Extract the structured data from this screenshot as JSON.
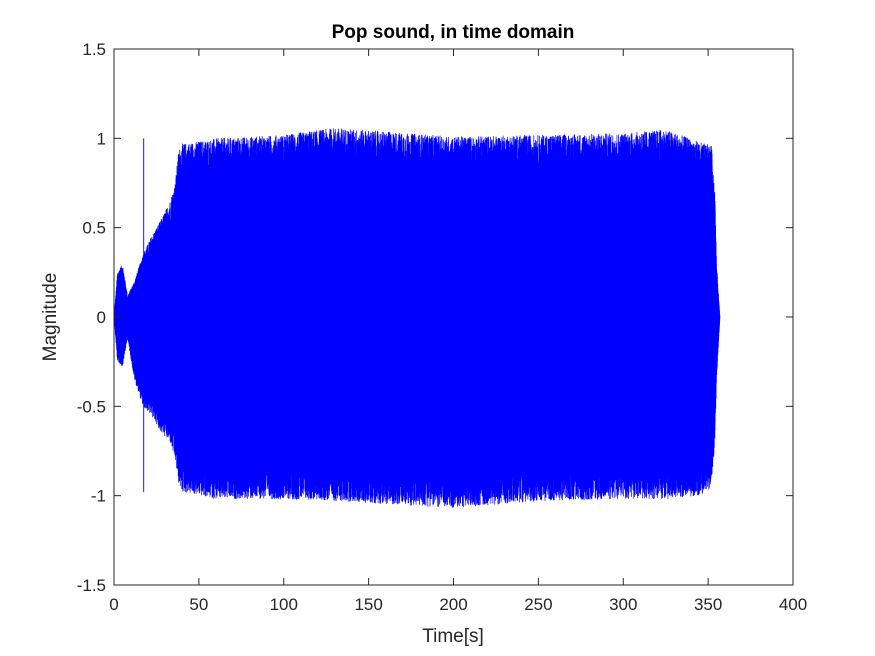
{
  "chart_data": {
    "type": "line",
    "title": "Pop sound, in time domain",
    "xlabel": "Time[s]",
    "ylabel": "Magnitude",
    "xlim": [
      0,
      400
    ],
    "ylim": [
      -1.5,
      1.5
    ],
    "xticks": [
      0,
      50,
      100,
      150,
      200,
      250,
      300,
      350,
      400
    ],
    "xtick_labels": [
      "0",
      "50",
      "100",
      "150",
      "200",
      "250",
      "300",
      "350",
      "400"
    ],
    "yticks": [
      -1.5,
      -1,
      -0.5,
      0,
      0.5,
      1,
      1.5
    ],
    "ytick_labels": [
      "-1.5",
      "-1",
      "-0.5",
      "0",
      "0.5",
      "1",
      "1.5"
    ],
    "grid": false,
    "box": true,
    "series": [
      {
        "color": "#0000ff",
        "style": "dense oscillating waveform",
        "envelope": [
          {
            "x": 0,
            "max": 0.0,
            "min": 0.0
          },
          {
            "x": 2,
            "max": 0.25,
            "min": -0.25
          },
          {
            "x": 5,
            "max": 0.3,
            "min": -0.28
          },
          {
            "x": 8,
            "max": 0.12,
            "min": -0.12
          },
          {
            "x": 12,
            "max": 0.2,
            "min": -0.35
          },
          {
            "x": 17,
            "max": 0.35,
            "min": -0.5
          },
          {
            "x": 22,
            "max": 0.45,
            "min": -0.55
          },
          {
            "x": 28,
            "max": 0.55,
            "min": -0.65
          },
          {
            "x": 33,
            "max": 0.65,
            "min": -0.7
          },
          {
            "x": 36,
            "max": 0.75,
            "min": -0.8
          },
          {
            "x": 38,
            "max": 0.93,
            "min": -0.93
          },
          {
            "x": 40,
            "max": 0.97,
            "min": -0.98
          },
          {
            "x": 60,
            "max": 1.0,
            "min": -1.02
          },
          {
            "x": 100,
            "max": 1.02,
            "min": -1.02
          },
          {
            "x": 130,
            "max": 1.06,
            "min": -1.03
          },
          {
            "x": 200,
            "max": 1.01,
            "min": -1.07
          },
          {
            "x": 250,
            "max": 1.02,
            "min": -1.03
          },
          {
            "x": 300,
            "max": 1.03,
            "min": -1.02
          },
          {
            "x": 325,
            "max": 1.05,
            "min": -1.02
          },
          {
            "x": 345,
            "max": 0.98,
            "min": -1.0
          },
          {
            "x": 352,
            "max": 0.96,
            "min": -0.96
          },
          {
            "x": 354,
            "max": 0.7,
            "min": -0.7
          },
          {
            "x": 355,
            "max": 0.3,
            "min": -0.35
          },
          {
            "x": 357,
            "max": 0.0,
            "min": 0.0
          }
        ],
        "spikes": [
          {
            "x": 17.5,
            "max": 1.0,
            "min": -0.98
          }
        ]
      }
    ]
  }
}
